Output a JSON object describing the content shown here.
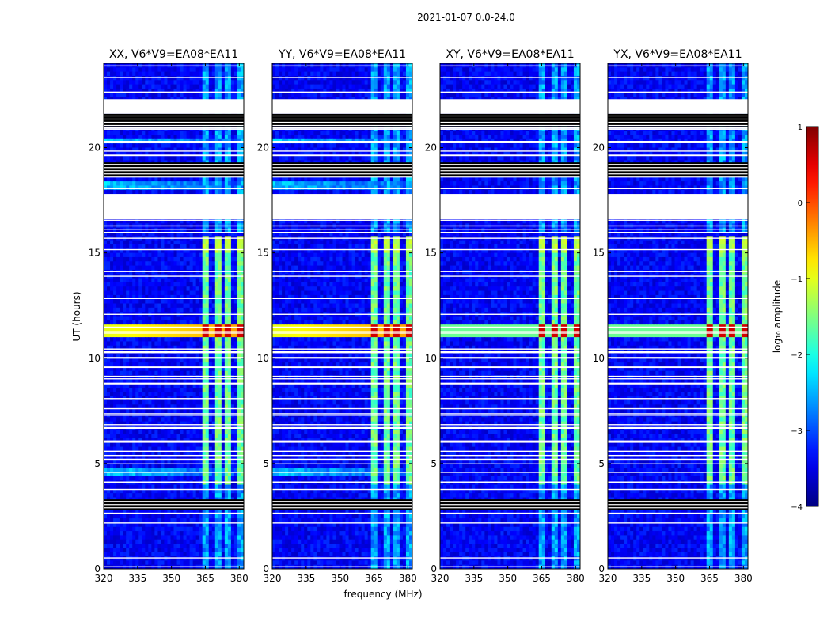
{
  "chart_data": {
    "type": "heatmap",
    "suptitle": "2021-01-07 0.0-24.0",
    "xlabel": "frequency (MHz)",
    "ylabel": "UT (hours)",
    "xlim": [
      320,
      382
    ],
    "ylim": [
      0,
      24
    ],
    "xticks": [
      "320",
      "335",
      "350",
      "365",
      "380"
    ],
    "xtick_values": [
      320,
      335,
      350,
      365,
      380
    ],
    "yticks": [
      "0",
      "5",
      "10",
      "15",
      "20"
    ],
    "ytick_values": [
      0,
      5,
      10,
      15,
      20
    ],
    "panels": [
      {
        "title": "XX, V6*V9=EA08*EA11",
        "pol": "XX"
      },
      {
        "title": "YY, V6*V9=EA08*EA11",
        "pol": "YY"
      },
      {
        "title": "XY, V6*V9=EA08*EA11",
        "pol": "XY"
      },
      {
        "title": "YX, V6*V9=EA08*EA11",
        "pol": "YX"
      }
    ],
    "colorbar": {
      "label": "log₁₀ amplitude",
      "range": [
        -4,
        1
      ],
      "ticks": [
        "1",
        "0",
        "−1",
        "−2",
        "−3",
        "−4"
      ],
      "tick_values": [
        1,
        0,
        -1,
        -2,
        -3,
        -4
      ],
      "colormap": "jet"
    },
    "rfi_band_mhz": [
      364,
      379
    ],
    "rfi_channels_mhz": [
      [
        364,
        367
      ],
      [
        369,
        372
      ],
      [
        374,
        377
      ],
      [
        379,
        381.5
      ]
    ],
    "bright_rfi_hours": [
      11.0,
      11.6
    ],
    "flagged_blank_hours": [
      [
        16.6,
        17.8
      ],
      [
        21.6,
        22.3
      ]
    ],
    "flagged_black_hours": [
      [
        18.6,
        19.3
      ],
      [
        21.0,
        21.6
      ],
      [
        2.8,
        3.3
      ]
    ],
    "background_log_amplitude": -3.4,
    "rfi_log_amplitude": -1.6
  }
}
